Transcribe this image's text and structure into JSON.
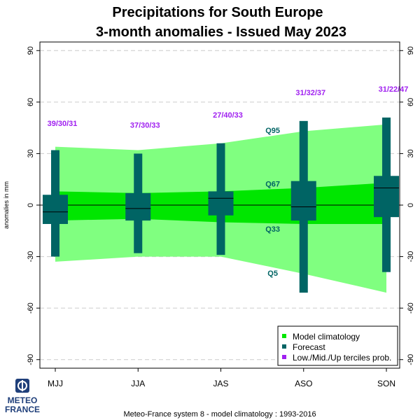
{
  "chart_data": {
    "type": "boxplot",
    "title_line1": "Precipitations  for  South Europe",
    "title_line2": "3-month anomalies    -    Issued May 2023",
    "ylabel": "anomalies in mm",
    "ylim": [
      -95,
      95
    ],
    "yticks": [
      "-90",
      "-60",
      "-30",
      "0",
      "30",
      "60",
      "90"
    ],
    "ytick_values": [
      -90,
      -60,
      -30,
      0,
      30,
      60,
      90
    ],
    "grid": true,
    "categories": [
      "MJJ",
      "JJA",
      "JAS",
      "ASO",
      "SON"
    ],
    "climatology": {
      "q5": [
        -33,
        -30,
        -30,
        -40,
        -51
      ],
      "q33": [
        -9,
        -8,
        -10,
        -11,
        -11
      ],
      "q67": [
        8,
        7,
        8,
        10,
        13
      ],
      "q95": [
        34,
        32,
        36,
        43,
        47
      ]
    },
    "quantile_labels": [
      "Q95",
      "Q67",
      "Q33",
      "Q5"
    ],
    "forecast": {
      "min": [
        -30,
        -28,
        -29,
        -51,
        -39
      ],
      "lower": [
        -11,
        -9,
        -6,
        -9,
        -7
      ],
      "median": [
        -4,
        -2,
        4,
        -1,
        10
      ],
      "upper": [
        6,
        7,
        8,
        14,
        17
      ],
      "max": [
        32,
        30,
        36,
        49,
        51
      ]
    },
    "tercile_probs": [
      "39/30/31",
      "37/30/33",
      "27/40/33",
      "31/32/37",
      "31/22/47"
    ],
    "tercile_label_y": [
      46,
      45,
      51,
      64,
      66
    ],
    "legend": {
      "position": "bottom-right",
      "items": [
        "Model climatology",
        "Forecast",
        "Low./Mid./Up terciles prob."
      ]
    },
    "footnote": "Meteo-France system 8  -  model climatology : 1993-2016"
  },
  "colors": {
    "outer_band": "#80ff80",
    "inner_band": "#00e600",
    "forecast": "#006464",
    "probability": "#a020f0",
    "quantile_label": "#006464",
    "grid": "#cccccc",
    "logo_blue": "#1f3f7a"
  },
  "logo": {
    "line1": "METEO",
    "line2": "FRANCE",
    "icon": "meteo-france-logo-icon"
  }
}
